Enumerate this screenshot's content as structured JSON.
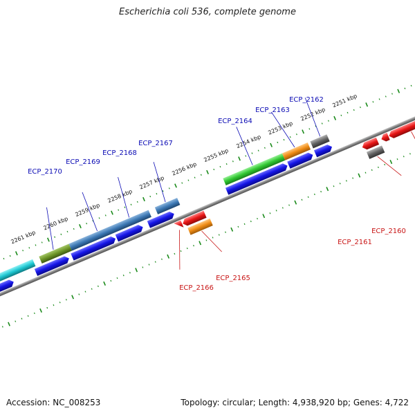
{
  "title": "Escherichia coli 536, complete genome",
  "footer": {
    "accession": "Accession: NC_008253",
    "summary": "Topology: circular; Length: 4,938,920 bp; Genes: 4,722"
  },
  "colors": {
    "backbone": "#7f7f7f",
    "tick": "#1a8a1a",
    "forward_label": "#0a0ab4",
    "reverse_label": "#c81414",
    "cds_blue": "#1414e6",
    "cyan": "#1ec8d2",
    "olive": "#6e9628",
    "steel": "#3c78b4",
    "green": "#32c832",
    "orange": "#f08c14",
    "gray": "#646464",
    "red": "#e61414"
  },
  "ruler_labels": [
    "2251 kbp",
    "2252 kbp",
    "2253 kbp",
    "2254 kbp",
    "2255 kbp",
    "2256 kbp",
    "2257 kbp",
    "2258 kbp",
    "2259 kbp",
    "2260 kbp",
    "2261 kbp"
  ],
  "forward_genes": [
    {
      "label": "ECP_2162"
    },
    {
      "label": "ECP_2163"
    },
    {
      "label": "ECP_2164"
    },
    {
      "label": "ECP_2167"
    },
    {
      "label": "ECP_2168"
    },
    {
      "label": "ECP_2169"
    },
    {
      "label": "ECP_2170"
    }
  ],
  "reverse_genes": [
    {
      "label": "ECP_2160"
    },
    {
      "label": "ECP_2161"
    },
    {
      "label": "ECP_2165"
    },
    {
      "label": "ECP_2166"
    }
  ]
}
